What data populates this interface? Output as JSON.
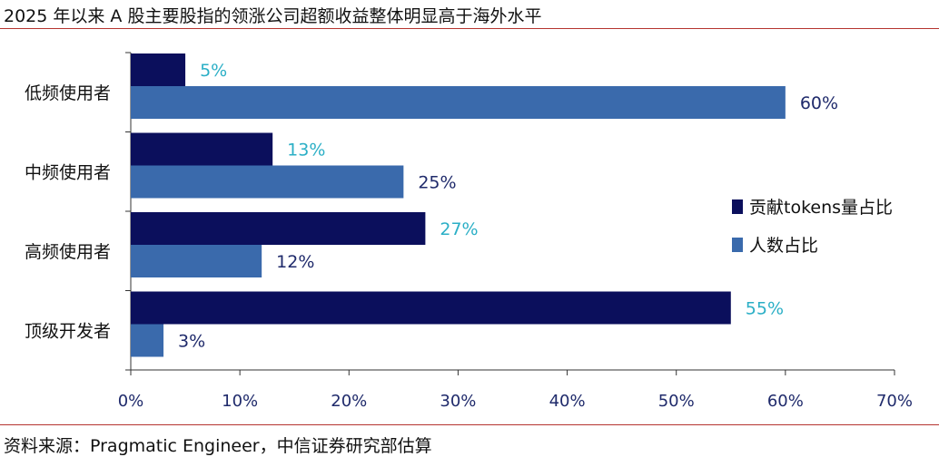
{
  "header": {
    "title": "2025 年以来 A 股主要股指的领涨公司超额收益整体明显高于海外水平"
  },
  "footer": {
    "source": "资料来源：Pragmatic Engineer，中信证券研究部估算"
  },
  "chart_data": {
    "type": "bar",
    "orientation": "horizontal",
    "categories": [
      "低频使用者",
      "中频使用者",
      "高频使用者",
      "顶级开发者"
    ],
    "series": [
      {
        "name": "贡献tokens量占比",
        "values": [
          5,
          13,
          27,
          55
        ],
        "labels": [
          "5%",
          "13%",
          "27%",
          "55%"
        ],
        "color": "#0b0f5c",
        "label_color": "#2bafc6"
      },
      {
        "name": "人数占比",
        "values": [
          60,
          25,
          12,
          3
        ],
        "labels": [
          "60%",
          "25%",
          "12%",
          "3%"
        ],
        "color": "#3a6aac",
        "label_color": "#1f2a6b"
      }
    ],
    "xlim": [
      0,
      70
    ],
    "xticks": [
      0,
      10,
      20,
      30,
      40,
      50,
      60,
      70
    ],
    "xtick_labels": [
      "0%",
      "10%",
      "20%",
      "30%",
      "40%",
      "50%",
      "60%",
      "70%"
    ],
    "xlabel": "",
    "ylabel": "",
    "grid": false,
    "legend_position": "right"
  }
}
